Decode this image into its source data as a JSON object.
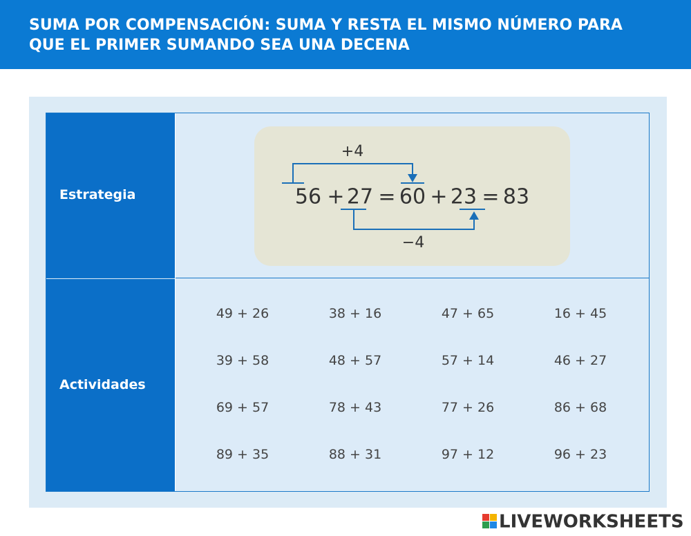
{
  "header": {
    "title_lines": [
      "SUMA POR COMPENSACIÓN: SUMA Y RESTA EL MISMO NÚMERO PARA",
      "QUE EL PRIMER SUMANDO SEA UNA DECENA"
    ]
  },
  "table": {
    "strategy": {
      "label": "Estrategia",
      "equation": [
        "56",
        "+",
        "27",
        "=",
        "60",
        "+",
        "23",
        "=",
        "83"
      ],
      "add_note": "+4",
      "subtract_note": "−4"
    },
    "activities": {
      "label": "Actividades",
      "rows": [
        [
          "49 + 26",
          "38 + 16",
          "47 + 65",
          "16 + 45"
        ],
        [
          "39 + 58",
          "48 + 57",
          "57 + 14",
          "46 + 27"
        ],
        [
          "69 + 57",
          "78 + 43",
          "77 + 26",
          "86 + 68"
        ],
        [
          "89 + 35",
          "88 + 31",
          "97 + 12",
          "96 + 23"
        ]
      ]
    }
  },
  "footer": {
    "logo": "LIVEWORKSHEETS"
  }
}
